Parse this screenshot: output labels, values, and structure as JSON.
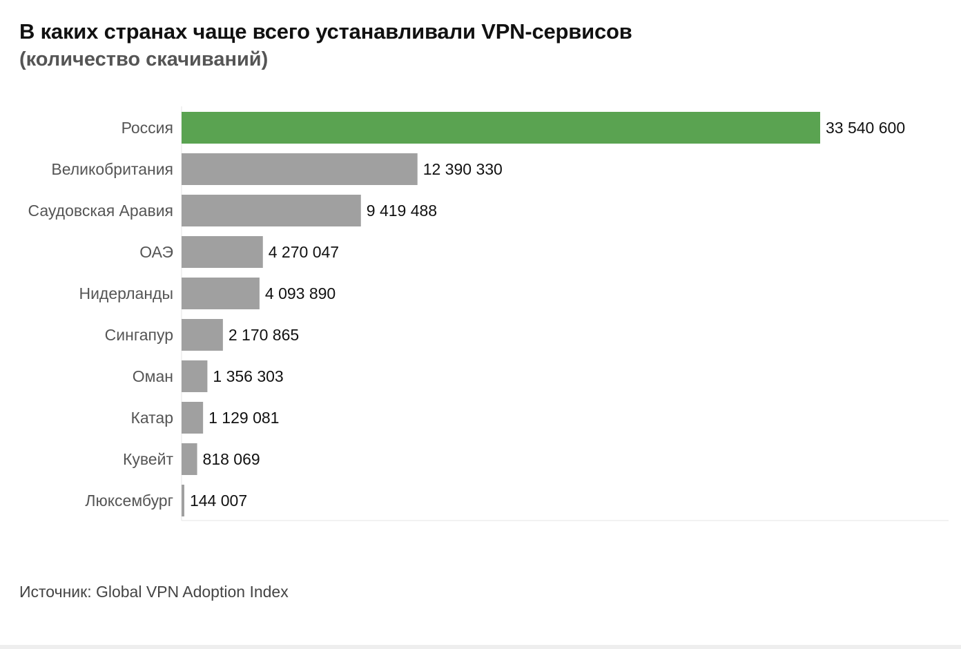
{
  "header": {
    "title": "В каких странах чаще всего устанавливали VPN-сервисов",
    "subtitle": "(количество скачиваний)"
  },
  "footer": {
    "source": "Источник: Global VPN Adoption Index"
  },
  "colors": {
    "highlight": "#5aa351",
    "bar": "#a0a0a0",
    "category_text": "#555555",
    "value_text": "#111111",
    "axis": "#e6e6e6"
  },
  "chart_data": {
    "type": "bar",
    "orientation": "horizontal",
    "title": "В каких странах чаще всего устанавливали VPN-сервисов",
    "subtitle": "(количество скачиваний)",
    "categories": [
      "Россия",
      "Великобритания",
      "Саудовская Аравия",
      "ОАЭ",
      "Нидерланды",
      "Сингапур",
      "Оман",
      "Катар",
      "Кувейт",
      "Люксембург"
    ],
    "values": [
      33540600,
      12390330,
      9419488,
      4270047,
      4093890,
      2170865,
      1356303,
      1129081,
      818069,
      144007
    ],
    "value_labels": [
      "33 540 600",
      "12 390 330",
      "9 419 488",
      "4 270 047",
      "4 093 890",
      "2 170 865",
      "1 356 303",
      "1 129 081",
      "818 069",
      "144 007"
    ],
    "highlighted_category": "Россия",
    "xlim": [
      0,
      33540600
    ],
    "grid": false,
    "legend": "none"
  }
}
